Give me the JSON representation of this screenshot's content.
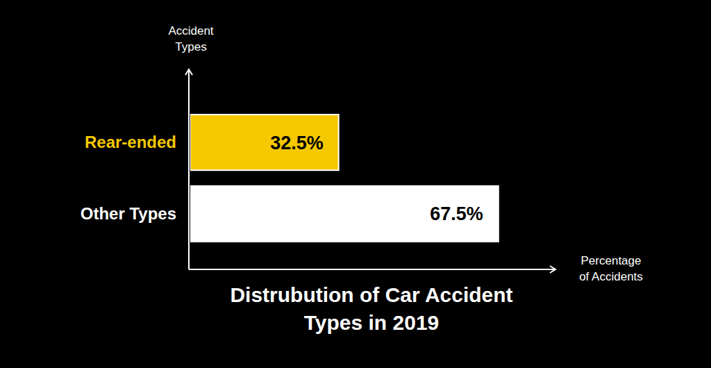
{
  "chart_data": {
    "type": "bar",
    "orientation": "horizontal",
    "title": "Distrubution of Car Accident Types in 2019",
    "x_label": "Percentage of Accidents",
    "y_label": "Accident Types",
    "categories": [
      "Rear-ended",
      "Other Types"
    ],
    "values": [
      32.5,
      67.5
    ],
    "value_labels": [
      "32.5%",
      "67.5%"
    ],
    "colors": [
      "#f5c800",
      "#ffffff"
    ],
    "xlim": [
      0,
      80
    ],
    "tick_labels": false,
    "data_labels": true,
    "grid": false
  }
}
